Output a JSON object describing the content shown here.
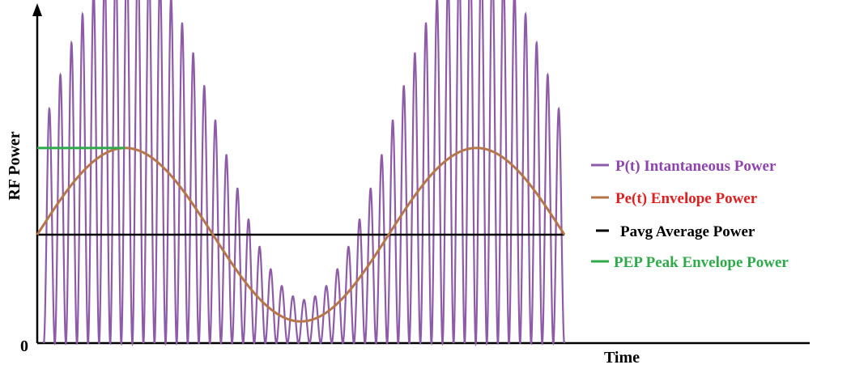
{
  "chart_data": {
    "type": "line",
    "title": "",
    "xlabel": "Time",
    "ylabel": "RF Power",
    "y_origin_label": "0",
    "grid": false,
    "legend_position": "right",
    "colors": {
      "instantaneous": "#8e5ba8",
      "envelope": "#b5764a",
      "average": "#000000",
      "pep": "#2eaa4a",
      "legend_instantaneous": "#8e44ad",
      "legend_envelope": "#e02020",
      "legend_average": "#000000",
      "legend_pep": "#2eaa4a"
    },
    "series": [
      {
        "key": "instantaneous",
        "name": "P(t) Intantaneous Power"
      },
      {
        "key": "envelope",
        "name": "Pe(t) Envelope Power"
      },
      {
        "key": "average",
        "name": "Pavg Average Power"
      },
      {
        "key": "pep",
        "name": "PEP Peak Envelope Power"
      }
    ],
    "model": {
      "average_power": 1.0,
      "envelope_swing": 0.8,
      "modulation_cycles": 1.5,
      "carrier_cycles": 47,
      "peak_envelope_power": 1.8
    },
    "ylim": [
      0,
      3.06
    ]
  }
}
